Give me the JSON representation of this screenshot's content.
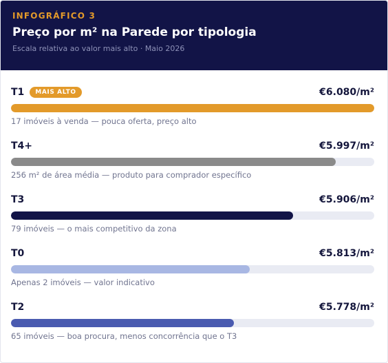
{
  "header": {
    "eyebrow": "INFOGRÁFICO 3",
    "title": "Preço por m² na Parede por tipologia",
    "subtitle": "Escala relativa ao valor mais alto · Maio 2026"
  },
  "badge_label": "MAIS ALTO",
  "chart_data": {
    "type": "bar",
    "orientation": "horizontal",
    "categories": [
      "T1",
      "T4+",
      "T3",
      "T0",
      "T2"
    ],
    "values": [
      6080,
      5997,
      5906,
      5813,
      5778
    ],
    "value_labels": [
      "€6.080/m²",
      "€5.997/m²",
      "€5.906/m²",
      "€5.813/m²",
      "€5.778/m²"
    ],
    "notes": [
      "17 imóveis à venda — pouca oferta, preço alto",
      "256 m² de área média — produto para comprador específico",
      "79 imóveis — o mais competitivo da zona",
      "Apenas 2 imóveis — valor indicativo",
      "65 imóveis — boa procura, menos concorrência que o T3"
    ],
    "colors": [
      "#e39a2a",
      "#8a8a8a",
      "#121447",
      "#a8b7e3",
      "#4a5bb0"
    ],
    "scale_max": 6080
  }
}
